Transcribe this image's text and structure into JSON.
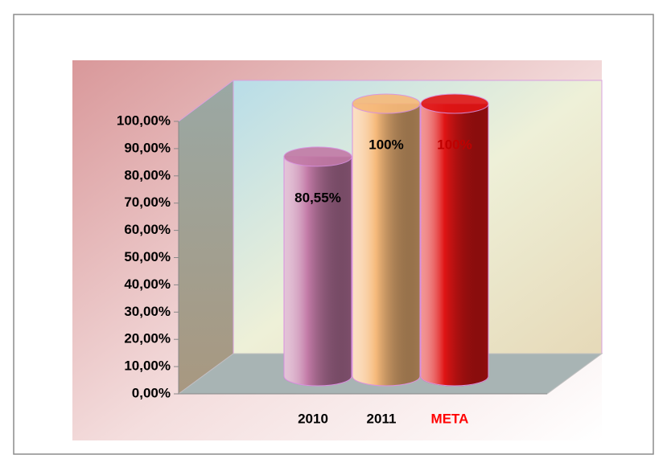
{
  "chart_data": {
    "type": "bar3d",
    "categories": [
      "2010",
      "2011",
      "META"
    ],
    "values": [
      80.55,
      100,
      100
    ],
    "value_labels": [
      "80,55%",
      "100%",
      "100%"
    ],
    "colors": [
      "#c27aa6",
      "#f6b97a",
      "#e01515"
    ],
    "category_label_colors": [
      "#000000",
      "#000000",
      "#ff0000"
    ],
    "value_label_colors": [
      "#000000",
      "#000000",
      "#c00000"
    ],
    "ylim": [
      0,
      100
    ],
    "yticks": [
      {
        "value": 0,
        "label": "0,00%"
      },
      {
        "value": 10,
        "label": "10,00%"
      },
      {
        "value": 20,
        "label": "20,00%"
      },
      {
        "value": 30,
        "label": "30,00%"
      },
      {
        "value": 40,
        "label": "40,00%"
      },
      {
        "value": 50,
        "label": "50,00%"
      },
      {
        "value": 60,
        "label": "60,00%"
      },
      {
        "value": 70,
        "label": "70,00%"
      },
      {
        "value": 80,
        "label": "80,00%"
      },
      {
        "value": 90,
        "label": "90,00%"
      },
      {
        "value": 100,
        "label": "100,00%"
      }
    ],
    "grid": false
  }
}
